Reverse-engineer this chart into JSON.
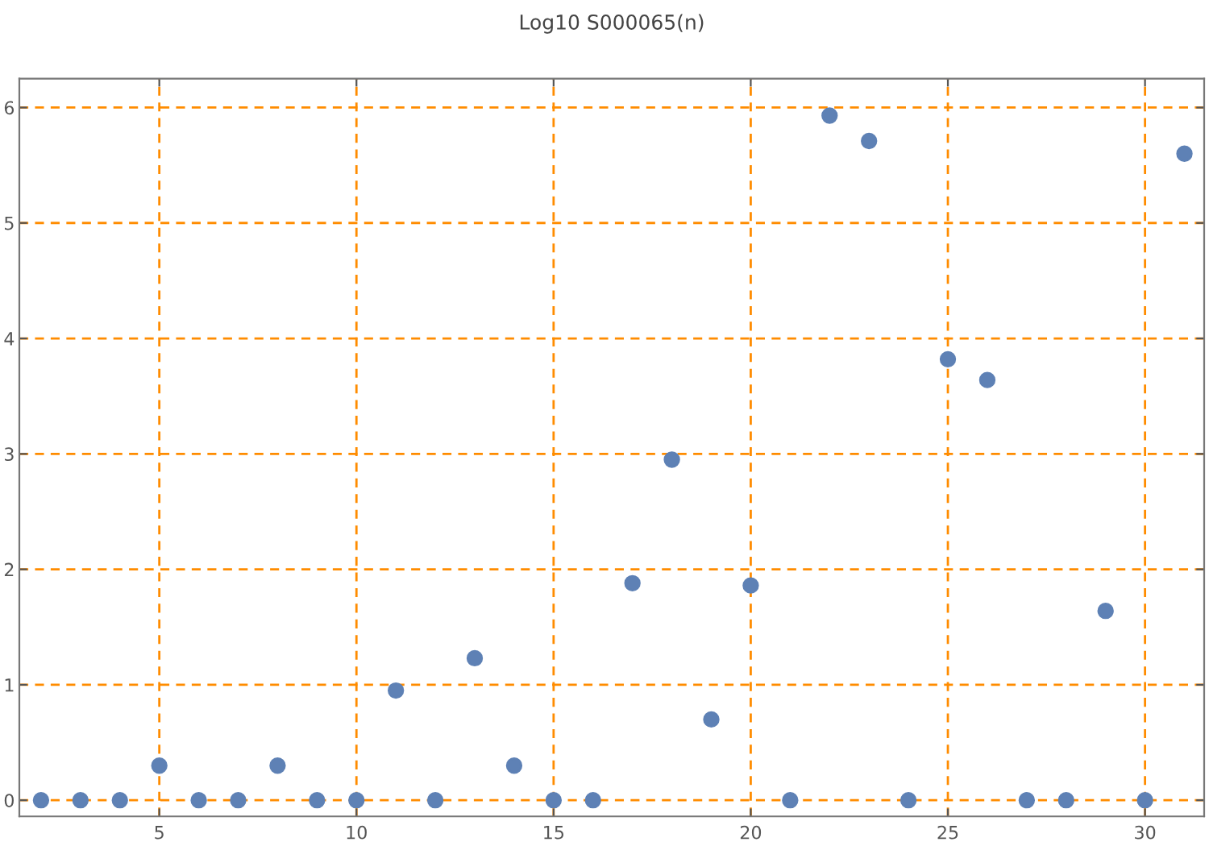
{
  "chart_data": {
    "type": "scatter",
    "title": "Log10 S000065(n)",
    "x": [
      2,
      3,
      4,
      5,
      6,
      7,
      8,
      9,
      10,
      11,
      12,
      13,
      14,
      15,
      16,
      17,
      18,
      19,
      20,
      21,
      22,
      23,
      24,
      25,
      26,
      27,
      28,
      29,
      30,
      31
    ],
    "series": [
      {
        "color": "#5e81b5",
        "values": [
          0,
          0,
          0,
          0.3,
          0,
          0,
          0.3,
          0,
          0,
          0.95,
          0,
          1.23,
          0.3,
          0,
          0,
          1.88,
          2.95,
          0.7,
          1.86,
          0,
          5.93,
          5.71,
          0,
          3.82,
          3.64,
          0,
          0,
          1.64,
          0,
          5.6
        ]
      }
    ],
    "marker": "circle",
    "grid": true,
    "xlim": [
      1.45,
      31.5
    ],
    "ylim": [
      -0.14,
      6.25
    ],
    "xticks": [
      5,
      10,
      15,
      20,
      25,
      30
    ],
    "yticks": [
      0,
      1,
      2,
      3,
      4,
      5,
      6
    ]
  }
}
